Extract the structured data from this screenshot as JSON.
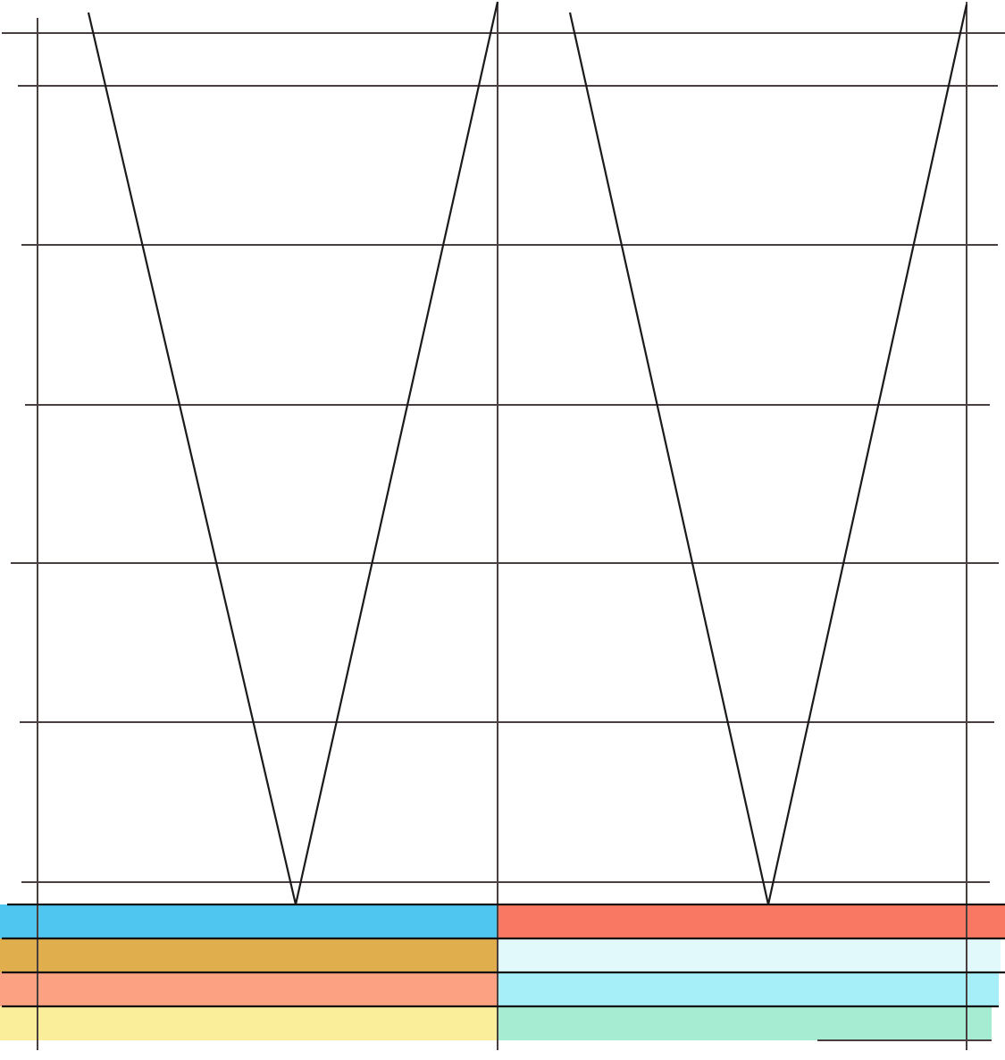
{
  "diagram": {
    "columns": 2,
    "grid_rows": 6,
    "shapes": [
      "V",
      "V"
    ],
    "color_bands": {
      "left": [
        "#4ec6ef",
        "#e0ae4d",
        "#fda183",
        "#fbee9b"
      ],
      "right": [
        "#f97863",
        "#e2f9fb",
        "#a6eff8",
        "#a6ecd3"
      ]
    },
    "line_color": "#4a3f3f",
    "v_color": "#1a1a1a"
  }
}
